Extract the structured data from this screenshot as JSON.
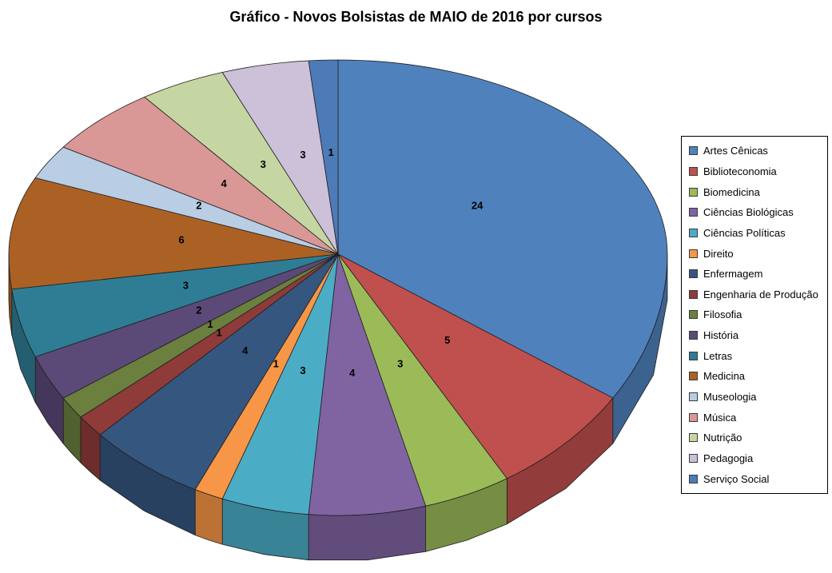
{
  "chart_data": {
    "type": "pie",
    "style": "3d-pie",
    "title": "Gráfico - Novos Bolsistas de MAIO de 2016 por cursos",
    "categories": [
      "Artes Cênicas",
      "Biblioteconomia",
      "Biomedicina",
      "Ciências Biológicas",
      "Ciências Políticas",
      "Direito",
      "Enfermagem",
      "Engenharia de Produção",
      "Filosofia",
      "História",
      "Letras",
      "Medicina",
      "Museologia",
      "Música",
      "Nutrição",
      "Pedagogia",
      "Serviço Social"
    ],
    "values": [
      24,
      5,
      3,
      4,
      3,
      1,
      4,
      1,
      1,
      2,
      3,
      6,
      2,
      4,
      3,
      3,
      1
    ],
    "total": 70,
    "colors": [
      "#4F81BD",
      "#C0504D",
      "#9BBB59",
      "#8064A2",
      "#4BACC6",
      "#F79646",
      "#35567F",
      "#8E3B39",
      "#6B7F3E",
      "#5B4978",
      "#2E7D95",
      "#AC6124",
      "#B9CDE5",
      "#D99795",
      "#C6D6A2",
      "#CCC1D9",
      "#4C7BB8"
    ],
    "data_labels": "value",
    "label_color": "#000000",
    "outline_color": "#1f1f1f",
    "legend_position": "right",
    "start_angle_deg": 0,
    "direction": "clockwise",
    "background": "#FFFFFF"
  }
}
